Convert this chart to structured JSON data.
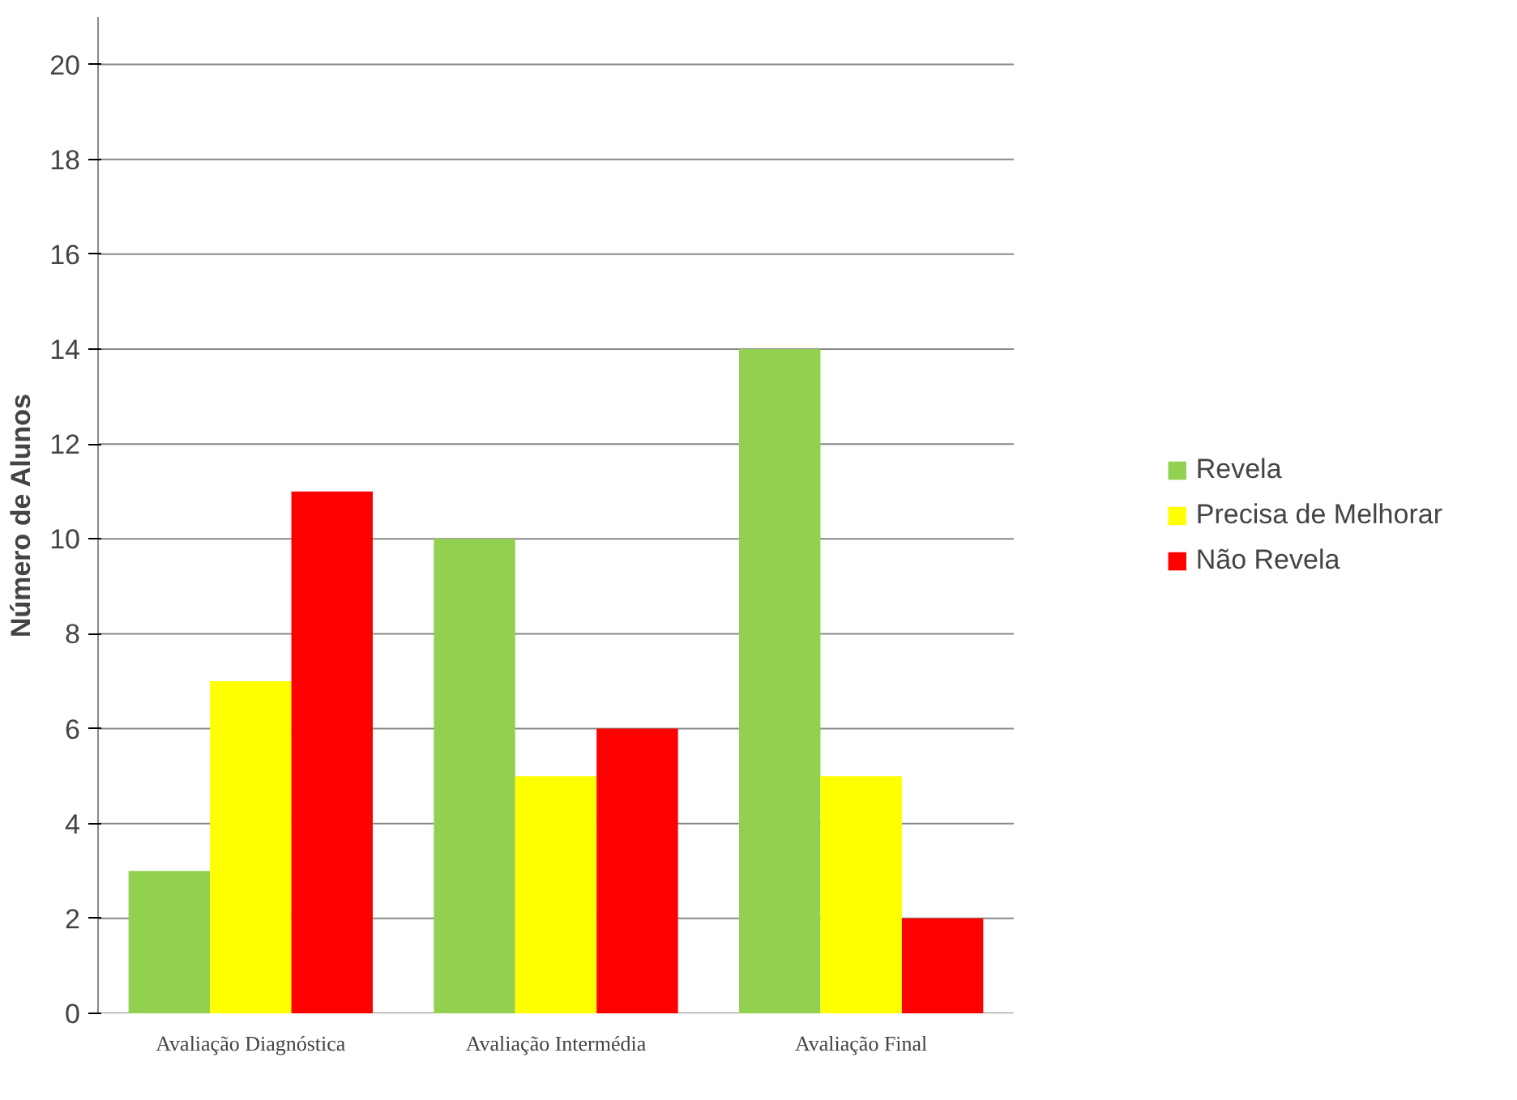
{
  "chart_data": {
    "type": "bar",
    "ylabel": "Número de Alunos",
    "categories": [
      "Avaliação Diagnóstica",
      "Avaliação Intermédia",
      "Avaliação Final"
    ],
    "series": [
      {
        "name": "Revela",
        "color": "#92d050",
        "values": [
          3,
          10,
          14
        ]
      },
      {
        "name": "Precisa de Melhorar",
        "color": "#ffff00",
        "values": [
          7,
          5,
          5
        ]
      },
      {
        "name": "Não Revela",
        "color": "#ff0000",
        "values": [
          11,
          6,
          2
        ]
      }
    ],
    "ylim": [
      0,
      21
    ],
    "yticks": [
      0,
      2,
      4,
      6,
      8,
      10,
      12,
      14,
      16,
      18,
      20
    ],
    "grid": "y",
    "legend": "right"
  }
}
